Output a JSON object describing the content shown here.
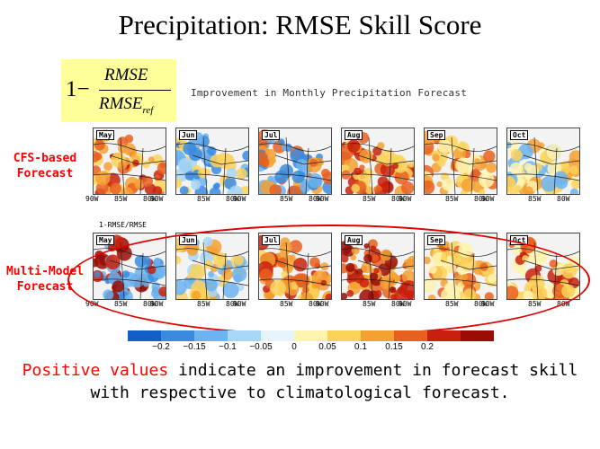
{
  "title": "Precipitation: RMSE Skill Score",
  "formula": {
    "one": "1−",
    "numerator": "RMSE",
    "denominator": "RMSE",
    "subscript": "ref"
  },
  "subtitle": "Improvement in Monthly Precipitation Forecast",
  "row_labels": {
    "cfs": "CFS-based\nForecast",
    "mm": "Multi-Model\nForecast"
  },
  "mm_small_label": "1-RMSE/RMSE",
  "months": [
    "May",
    "Jun",
    "Jul",
    "Aug",
    "Sep",
    "Oct"
  ],
  "axis_labels": [
    "90W",
    "85W",
    "80W"
  ],
  "legend": {
    "colors": [
      "#1060c8",
      "#3a8be0",
      "#6cb3f0",
      "#a8d6f6",
      "#e6f4fb",
      "#fff3b0",
      "#fbd25a",
      "#f4a032",
      "#e8601e",
      "#c8200c",
      "#9a0c04"
    ],
    "ticks": [
      "−0.2",
      "−0.15",
      "−0.1",
      "−0.05",
      "0",
      "0.05",
      "0.1",
      "0.15",
      "0.2"
    ]
  },
  "footer": {
    "highlight": "Positive values",
    "line1_rest": " indicate an improvement in forecast skill",
    "line2": "with respective to climatological forecast."
  }
}
